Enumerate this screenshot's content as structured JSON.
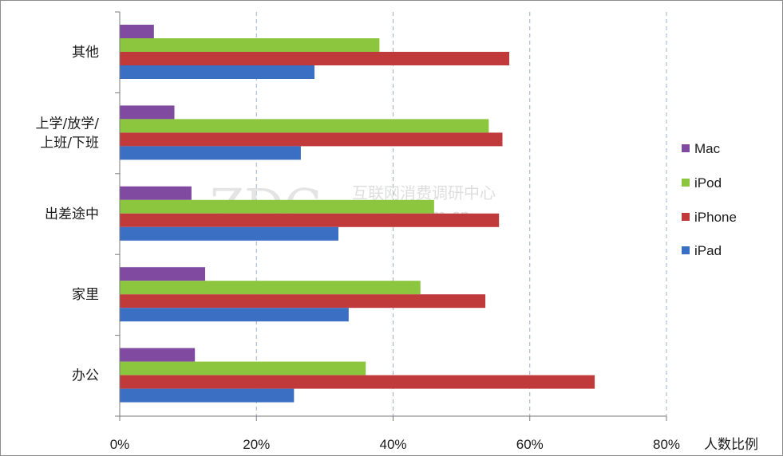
{
  "chart_data": {
    "type": "bar",
    "orientation": "horizontal",
    "categories": [
      "其他",
      "上学/放学/上班/下班",
      "出差途中",
      "家里",
      "办公"
    ],
    "category_lines": [
      [
        "其他"
      ],
      [
        "上学/放学/",
        "上班/下班"
      ],
      [
        "出差途中"
      ],
      [
        "家里"
      ],
      [
        "办公"
      ]
    ],
    "series": [
      {
        "name": "Mac",
        "color": "#7f4aa0",
        "values": [
          5,
          8,
          10.5,
          12.5,
          11
        ]
      },
      {
        "name": "iPod",
        "color": "#8cc63f",
        "values": [
          38,
          54,
          46,
          44,
          36
        ]
      },
      {
        "name": "iPhone",
        "color": "#c0393b",
        "values": [
          57,
          56,
          55.5,
          53.5,
          69.5
        ]
      },
      {
        "name": "iPad",
        "color": "#3a6fc4",
        "values": [
          28.5,
          26.5,
          32,
          33.5,
          25.5
        ]
      }
    ],
    "xlim": [
      0,
      80
    ],
    "x_ticks": [
      "0%",
      "20%",
      "40%",
      "60%",
      "80%"
    ],
    "xlabel": "人数比例",
    "legend_position": "right",
    "grid": "vertical-dashed"
  },
  "watermark": {
    "logo": "ZDC",
    "org": "互联网消费调研中心",
    "url": "zdc.zol.com.cn"
  }
}
